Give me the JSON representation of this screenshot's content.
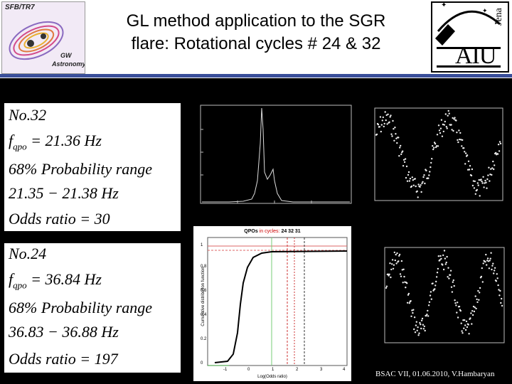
{
  "header": {
    "left_logo": {
      "line1": "SFB/TR7",
      "line2": "GW",
      "line3": "Astronomy"
    },
    "title_line1": "GL method application to the SGR",
    "title_line2": "flare: Rotational cycles  # 24 & 32",
    "right_logo": {
      "letters": "AIU",
      "side": "Jena"
    }
  },
  "box32": {
    "no": "No.32",
    "f_qpo": "= 21.36 Hz",
    "prob": "68%  Probability  range",
    "range": "21.35 − 21.38  Hz",
    "odds": "Odds  ratio  = 30"
  },
  "box24": {
    "no": "No.24",
    "f_qpo": "= 36.84 Hz",
    "prob": "68%  Probability  range",
    "range": "36.83 − 36.88  Hz",
    "odds": "Odds  ratio  = 197"
  },
  "qpo_plot": {
    "title_a": "QPOs",
    "title_b": "in cycles:",
    "title_c": "24 32 31",
    "xlabel": "Log(Odds ratio)",
    "ylabel": "Cumulative distribution function",
    "xticks": [
      "-1",
      "0",
      "1",
      "2",
      "3",
      "4"
    ],
    "yticks": [
      "0",
      "0.2",
      "0.4",
      "0.6",
      "0.8",
      "1"
    ]
  },
  "footer": "BSAC VII, 01.06.2010, V.Hambaryan"
}
